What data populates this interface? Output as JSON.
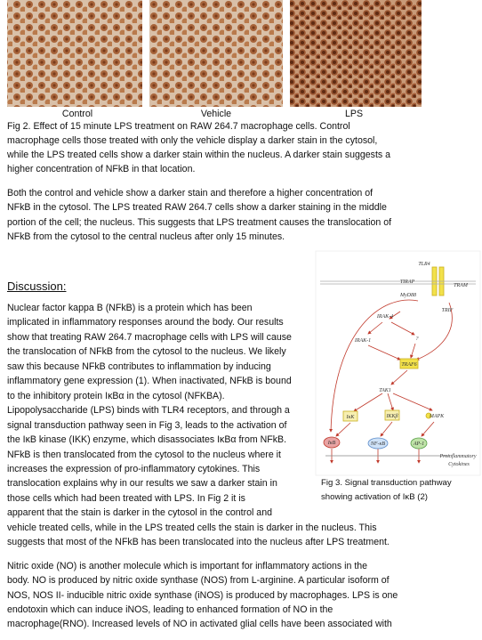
{
  "figure2": {
    "labels": [
      "Control",
      "Vehicle",
      "LPS"
    ],
    "caption_lines": [
      "Fig 2. Effect of 15 minute LPS treatment on RAW 264.7 macrophage cells. Control",
      "macrophage cells those treated with only the vehicle display a darker stain in the cytosol,",
      "while the LPS treated cells show a darker stain within the nucleus. A darker stain suggests a",
      "higher concentration of NFkB in that location."
    ]
  },
  "paragraph1_lines": [
    "Both the control and vehicle show a darker stain and therefore a higher concentration of",
    "NFkB in the cytosol. The LPS treated RAW 264.7 cells show a darker staining in the middle",
    "portion of the cell; the nucleus. This suggests that LPS treatment causes the translocation of",
    "NFkB from the cytosol to the central nucleus after only 15 minutes."
  ],
  "discussion": {
    "heading": "Discussion:",
    "lines": [
      "Nuclear factor kappa B (NFkB) is a protein which has been",
      "implicated in inflammatory responses around the body. Our results",
      "show that treating RAW 264.7 macrophage cells with LPS will cause",
      "the translocation of NFkB from the cytosol to the nucleus. We likely",
      "saw this because NFkB contributes to inflammation by inducing",
      "inflammatory gene expression (1). When inactivated, NFkB is bound",
      "to the inhibitory protein IκBα in the cytosol (NFKBA).",
      "Lipopolysaccharide (LPS) binds with TLR4 receptors, and through a",
      "signal transduction pathway seen in Fig 3, leads to the activation of",
      "the IκB kinase (IKK) enzyme, which disassociates IκBα from NFkB.",
      "NFkB is then translocated from the cytosol to the nucleus where it",
      "increases the expression of pro-inflammatory cytokines. This",
      "translocation explains why in our results we saw a darker stain in",
      "those cells which had been treated with LPS. In Fig 2 it is",
      "apparent that the stain is darker in the cytosol in the control and",
      "vehicle treated cells, while in the LPS treated cells the stain is darker in the nucleus. This",
      "suggests that most of the NFkB has been translocated into the nucleus after LPS treatment."
    ],
    "paragraph2_lines": [
      "Nitric oxide (NO) is another molecule which is important for inflammatory actions in the",
      "body. NO is produced by nitric oxide synthase (NOS) from L-arginine. A particular isoform of",
      "NOS, NOS II- inducible nitric oxide synthase (iNOS) is produced by macrophages. LPS is one",
      "endotoxin which can induce iNOS, leading to enhanced formation of NO in the",
      "macrophage(RNO). Increased levels of NO in activated glial cells have been associated with"
    ]
  },
  "figure3": {
    "caption_lines": [
      "Fig 3. Signal transduction pathway",
      "showing activation of IκB (2)"
    ],
    "nodes": [
      "TLR4",
      "TIRAP",
      "TRAM",
      "MyD88",
      "TRIF",
      "IRAK-4",
      "IRAK-1",
      "?",
      "TRAF6",
      "TAK1",
      "IκK",
      "IKKβ",
      "MAPK",
      "IκB",
      "NF-κB",
      "AP-1",
      "Proinflammatory",
      "Cytokines"
    ]
  }
}
